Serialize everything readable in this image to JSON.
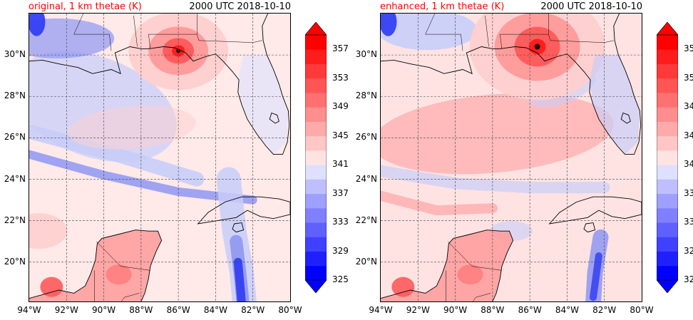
{
  "panels": [
    {
      "id": "original",
      "title_left": "original, 1 km thetae (K)",
      "title_right": "2000 UTC 2018-10-10",
      "storm_lon": -86.0,
      "storm_lat": 30.2
    },
    {
      "id": "enhanced",
      "title_left": "enhanced, 1 km thetae (K)",
      "title_right": "2000 UTC 2018-10-10",
      "storm_lon": -85.6,
      "storm_lat": 30.4
    }
  ],
  "map": {
    "lon_range": [
      -94,
      -80
    ],
    "lat_range": [
      18.1,
      32
    ],
    "lat_ticks": [
      "20°N",
      "22°N",
      "24°N",
      "26°N",
      "28°N",
      "30°N"
    ],
    "lon_ticks": [
      "94°W",
      "92°W",
      "90°W",
      "88°W",
      "86°W",
      "84°W",
      "82°W",
      "80°W"
    ],
    "gridlines": "dashed"
  },
  "colorbar": {
    "levels": [
      325,
      327,
      329,
      331,
      333,
      335,
      337,
      339,
      341,
      343,
      345,
      347,
      349,
      351,
      353,
      355,
      357,
      359
    ],
    "tick_labels": [
      "325",
      "329",
      "333",
      "337",
      "341",
      "345",
      "349",
      "353",
      "357"
    ],
    "colormap": "bwr",
    "low_color": "#0000ff",
    "high_color": "#ff0000",
    "extend": "both"
  }
}
